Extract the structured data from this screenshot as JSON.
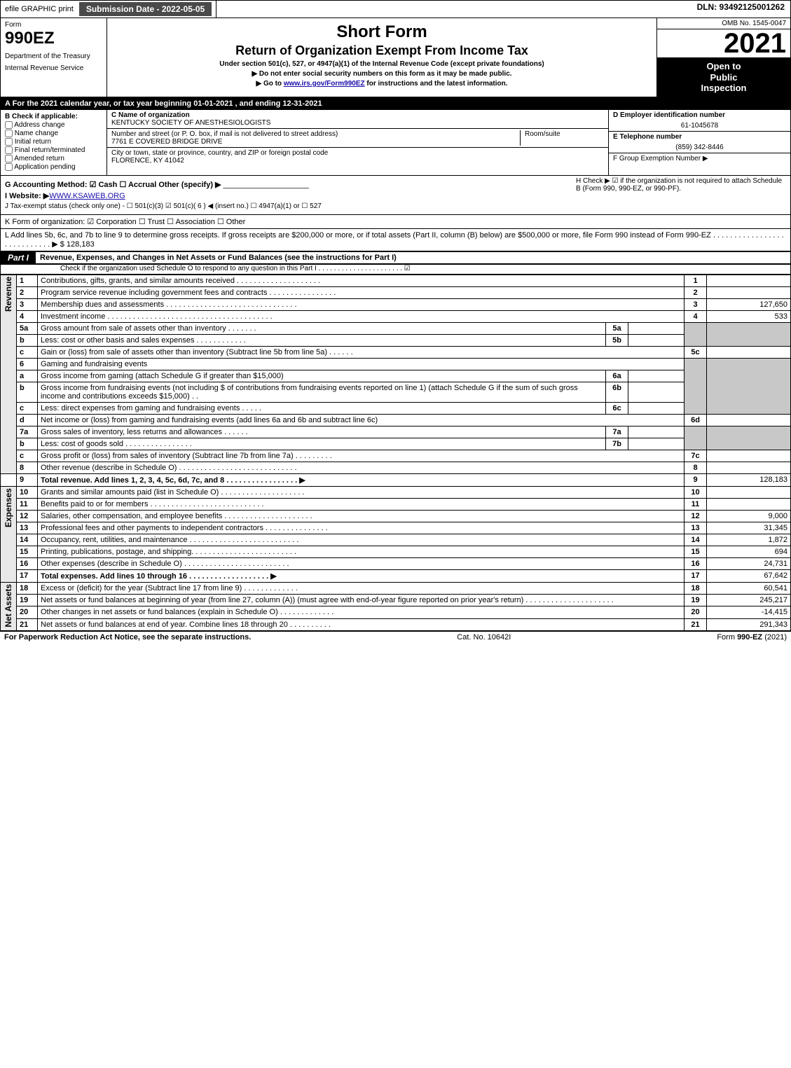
{
  "topbar": {
    "efile": "efile GRAPHIC print",
    "submission": "Submission Date - 2022-05-05",
    "dln": "DLN: 93492125001262"
  },
  "header": {
    "form_label": "Form",
    "form_num": "990EZ",
    "dept1": "Department of the Treasury",
    "dept2": "Internal Revenue Service",
    "title1": "Short Form",
    "title2": "Return of Organization Exempt From Income Tax",
    "subtitle": "Under section 501(c), 527, or 4947(a)(1) of the Internal Revenue Code (except private foundations)",
    "warn": "▶ Do not enter social security numbers on this form as it may be made public.",
    "goto_pre": "▶ Go to ",
    "goto_link": "www.irs.gov/Form990EZ",
    "goto_post": " for instructions and the latest information.",
    "omb": "OMB No. 1545-0047",
    "year": "2021",
    "open1": "Open to",
    "open2": "Public",
    "open3": "Inspection"
  },
  "A": "A  For the 2021 calendar year, or tax year beginning 01-01-2021 , and ending 12-31-2021",
  "B": {
    "label": "B  Check if applicable:",
    "addr": "Address change",
    "name": "Name change",
    "init": "Initial return",
    "final": "Final return/terminated",
    "amend": "Amended return",
    "app": "Application pending"
  },
  "C": {
    "name_label": "C Name of organization",
    "name": "KENTUCKY SOCIETY OF ANESTHESIOLOGISTS",
    "street_label": "Number and street (or P. O. box, if mail is not delivered to street address)",
    "street": "7761 E COVERED BRIDGE DRIVE",
    "room_label": "Room/suite",
    "city_label": "City or town, state or province, country, and ZIP or foreign postal code",
    "city": "FLORENCE, KY  41042"
  },
  "D": {
    "label": "D Employer identification number",
    "val": "61-1045678"
  },
  "E": {
    "label": "E Telephone number",
    "val": "(859) 342-8446"
  },
  "F": {
    "label": "F Group Exemption Number   ▶"
  },
  "G": "G Accounting Method:   ☑ Cash   ☐ Accrual   Other (specify) ▶",
  "H": "H  Check ▶  ☑  if the organization is not required to attach Schedule B (Form 990, 990-EZ, or 990-PF).",
  "I": {
    "pre": "I Website: ▶",
    "link": "WWW.KSAWEB.ORG"
  },
  "J": "J Tax-exempt status (check only one) - ☐ 501(c)(3)  ☑ 501(c)( 6 ) ◀ (insert no.)  ☐ 4947(a)(1) or  ☐ 527",
  "K": "K Form of organization:   ☑ Corporation   ☐ Trust   ☐ Association   ☐ Other",
  "L": {
    "text": "L Add lines 5b, 6c, and 7b to line 9 to determine gross receipts. If gross receipts are $200,000 or more, or if total assets (Part II, column (B) below) are $500,000 or more, file Form 990 instead of Form 990-EZ  .  .  .  .  .  .  .  .  .  .  .  .  .  .  .  .  .  .  .  .  .  .  .  .  .  .  .  . ▶ $",
    "val": " 128,183"
  },
  "part1": {
    "tab": "Part I",
    "title": "Revenue, Expenses, and Changes in Net Assets or Fund Balances (see the instructions for Part I)",
    "sub": "Check if the organization used Schedule O to respond to any question in this Part I  .  .  .  .  .  .  .  .  .  .  .  .  .  .  .  .  .  .  .  .  .  .   ☑"
  },
  "sides": {
    "rev": "Revenue",
    "exp": "Expenses",
    "net": "Net Assets"
  },
  "r": {
    "1": "Contributions, gifts, grants, and similar amounts received  .  .  .  .  .  .  .  .  .  .  .  .  .  .  .  .  .  .  .  .",
    "2": "Program service revenue including government fees and contracts  .  .  .  .  .  .  .  .  .  .  .  .  .  .  .  .",
    "3": "Membership dues and assessments  .  .  .  .  .  .  .  .  .  .  .  .  .  .  .  .  .  .  .  .  .  .  .  .  .  .  .  .  .  .  .",
    "4": "Investment income  .  .  .  .  .  .  .  .  .  .  .  .  .  .  .  .  .  .  .  .  .  .  .  .  .  .  .  .  .  .  .  .  .  .  .  .  .  .  .",
    "5a": "Gross amount from sale of assets other than inventory  .  .  .  .  .  .  .",
    "5b": "Less: cost or other basis and sales expenses  .  .  .  .  .  .  .  .  .  .  .  .",
    "5c": "Gain or (loss) from sale of assets other than inventory (Subtract line 5b from line 5a)  .  .  .  .  .  .",
    "6": "Gaming and fundraising events",
    "6a": "Gross income from gaming (attach Schedule G if greater than $15,000)",
    "6b": "Gross income from fundraising events (not including $                                of contributions from fundraising events reported on line 1) (attach Schedule G if the sum of such gross income and contributions exceeds $15,000)   .  .",
    "6c": "Less: direct expenses from gaming and fundraising events   .  .  .  .  .",
    "6d": "Net income or (loss) from gaming and fundraising events (add lines 6a and 6b and subtract line 6c)",
    "7a": "Gross sales of inventory, less returns and allowances  .  .  .  .  .  .",
    "7b": "Less: cost of goods sold           .  .  .  .  .  .  .  .  .  .  .  .  .  .  .  .",
    "7c": "Gross profit or (loss) from sales of inventory (Subtract line 7b from line 7a)  .  .  .  .  .  .  .  .  .",
    "8": "Other revenue (describe in Schedule O)  .  .  .  .  .  .  .  .  .  .  .  .  .  .  .  .  .  .  .  .  .  .  .  .  .  .  .  .",
    "9": "Total revenue. Add lines 1, 2, 3, 4, 5c, 6d, 7c, and 8   .  .  .  .  .  .  .  .  .  .  .  .  .  .  .  .  .    ▶",
    "10": "Grants and similar amounts paid (list in Schedule O)  .  .  .  .  .  .  .  .  .  .  .  .  .  .  .  .  .  .  .  .",
    "11": "Benefits paid to or for members         .  .  .  .  .  .  .  .  .  .  .  .  .  .  .  .  .  .  .  .  .  .  .  .  .  .  .",
    "12": "Salaries, other compensation, and employee benefits  .  .  .  .  .  .  .  .  .  .  .  .  .  .  .  .  .  .  .  .  .",
    "13": "Professional fees and other payments to independent contractors  .  .  .  .  .  .  .  .  .  .  .  .  .  .  .",
    "14": "Occupancy, rent, utilities, and maintenance  .  .  .  .  .  .  .  .  .  .  .  .  .  .  .  .  .  .  .  .  .  .  .  .  .  .",
    "15": "Printing, publications, postage, and shipping.   .  .  .  .  .  .  .  .  .  .  .  .  .  .  .  .  .  .  .  .  .  .  .  .",
    "16": "Other expenses (describe in Schedule O)      .  .  .  .  .  .  .  .  .  .  .  .  .  .  .  .  .  .  .  .  .  .  .  .  .",
    "17": "Total expenses. Add lines 10 through 16     .  .  .  .  .  .  .  .  .  .  .  .  .  .  .  .  .  .  .    ▶",
    "18": "Excess or (deficit) for the year (Subtract line 17 from line 9)        .  .  .  .  .  .  .  .  .  .  .  .  .",
    "19": "Net assets or fund balances at beginning of year (from line 27, column (A)) (must agree with end-of-year figure reported on prior year's return)  .  .  .  .  .  .  .  .  .  .  .  .  .  .  .  .  .  .  .  .  .",
    "20": "Other changes in net assets or fund balances (explain in Schedule O)  .  .  .  .  .  .  .  .  .  .  .  .  .",
    "21": "Net assets or fund balances at end of year. Combine lines 18 through 20  .  .  .  .  .  .  .  .  .  ."
  },
  "vals": {
    "3": "127,650",
    "4": "533",
    "9": "128,183",
    "12": "9,000",
    "13": "31,345",
    "14": "1,872",
    "15": "694",
    "16": "24,731",
    "17": "67,642",
    "18": "60,541",
    "19": "245,217",
    "20": "-14,415",
    "21": "291,343"
  },
  "footer": {
    "left": "For Paperwork Reduction Act Notice, see the separate instructions.",
    "mid": "Cat. No. 10642I",
    "right_pre": "Form ",
    "right_bold": "990-EZ",
    "right_post": " (2021)"
  }
}
